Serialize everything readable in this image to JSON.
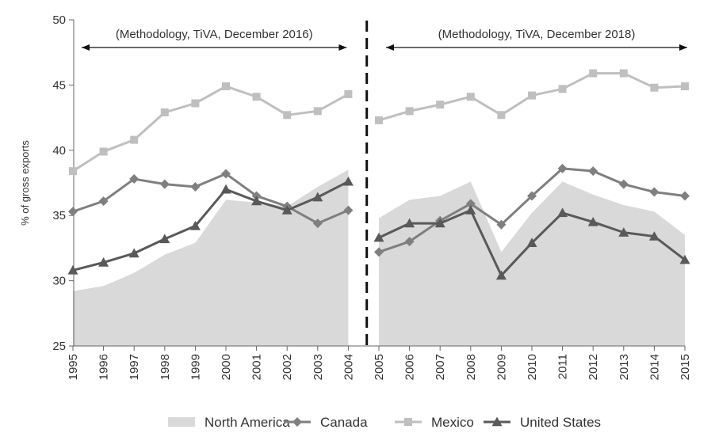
{
  "chart_data": {
    "type": "line",
    "xlabel": "",
    "ylabel": "% of gross exports",
    "ylim": [
      25,
      50
    ],
    "yticks": [
      25,
      30,
      35,
      40,
      45,
      50
    ],
    "categories": [
      "1995",
      "1996",
      "1997",
      "1998",
      "1999",
      "2000",
      "2001",
      "2002",
      "2003",
      "2004",
      "2005",
      "2006",
      "2007",
      "2008",
      "2009",
      "2010",
      "2011",
      "2012",
      "2013",
      "2014",
      "2015"
    ],
    "annotations": [
      {
        "text": "(Methodology, TiVA, December 2016)",
        "from": "1995",
        "to": "2004"
      },
      {
        "text": "(Methodology, TiVA, December 2018)",
        "from": "2005",
        "to": "2015"
      }
    ],
    "break_between": [
      "2004",
      "2005"
    ],
    "grid": false,
    "legend_position": "bottom",
    "series": [
      {
        "name": "North America",
        "kind": "area",
        "color": "#d9d9d9",
        "segments": [
          {
            "start": "1995",
            "values": [
              29.2,
              29.6,
              30.6,
              32.0,
              32.9,
              36.2,
              36.0,
              35.7,
              37.2,
              38.5
            ]
          },
          {
            "start": "2005",
            "values": [
              34.8,
              36.2,
              36.5,
              37.6,
              32.2,
              35.2,
              37.6,
              36.6,
              35.8,
              35.3,
              33.5
            ]
          }
        ]
      },
      {
        "name": "Canada",
        "kind": "line",
        "marker": "diamond",
        "color": "#7f7f7f",
        "segments": [
          {
            "start": "1995",
            "values": [
              35.3,
              36.1,
              37.8,
              37.4,
              37.2,
              38.2,
              36.5,
              35.7,
              34.4,
              35.4
            ]
          },
          {
            "start": "2005",
            "values": [
              32.2,
              33.0,
              34.6,
              35.9,
              34.3,
              36.5,
              38.6,
              38.4,
              37.4,
              36.8,
              36.5
            ]
          }
        ]
      },
      {
        "name": "Mexico",
        "kind": "line",
        "marker": "square",
        "color": "#bfbfbf",
        "segments": [
          {
            "start": "1995",
            "values": [
              38.4,
              39.9,
              40.8,
              42.9,
              43.6,
              44.9,
              44.1,
              42.7,
              43.0,
              44.3
            ]
          },
          {
            "start": "2005",
            "values": [
              42.3,
              43.0,
              43.5,
              44.1,
              42.7,
              44.2,
              44.7,
              45.9,
              45.9,
              44.8,
              44.9
            ]
          }
        ]
      },
      {
        "name": "United States",
        "kind": "line",
        "marker": "triangle",
        "color": "#595959",
        "segments": [
          {
            "start": "1995",
            "values": [
              30.8,
              31.4,
              32.1,
              33.2,
              34.2,
              37.0,
              36.1,
              35.4,
              36.4,
              37.6
            ]
          },
          {
            "start": "2005",
            "values": [
              33.3,
              34.4,
              34.4,
              35.4,
              30.4,
              32.9,
              35.2,
              34.5,
              33.7,
              33.4,
              31.6
            ]
          }
        ]
      }
    ]
  }
}
